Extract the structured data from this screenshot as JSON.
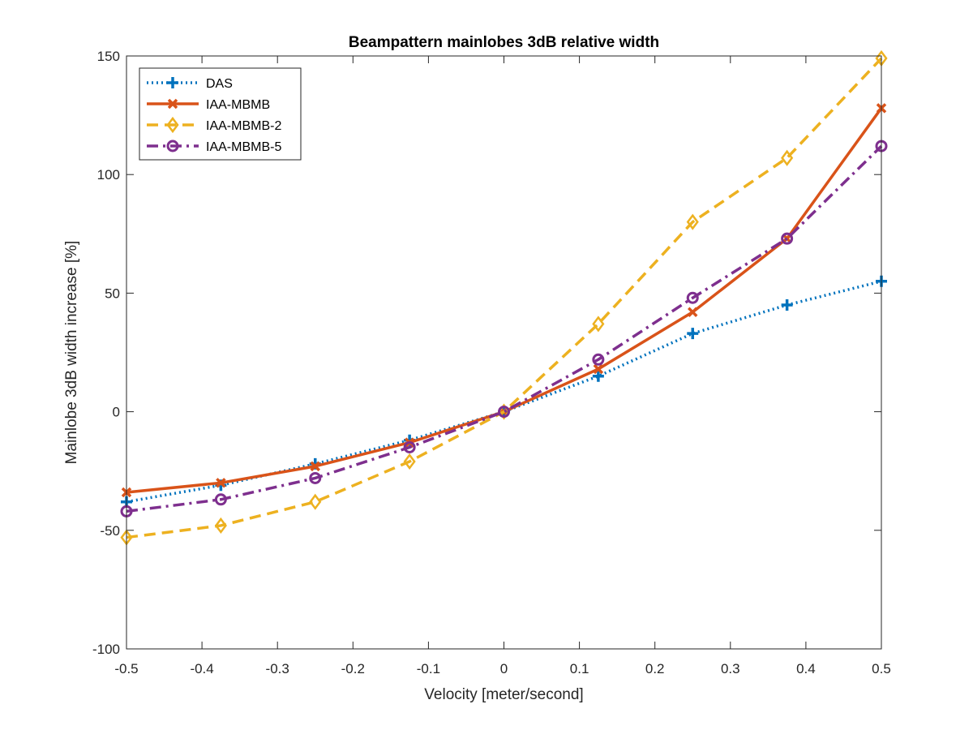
{
  "chart_data": {
    "type": "line",
    "title": "Beampattern mainlobes 3dB relative width",
    "xlabel": "Velocity [meter/second]",
    "ylabel": "Mainlobe 3dB width increase [%]",
    "xlim": [
      -0.5,
      0.5
    ],
    "ylim": [
      -100,
      150
    ],
    "xticks": [
      -0.5,
      -0.4,
      -0.3,
      -0.2,
      -0.1,
      0,
      0.1,
      0.2,
      0.3,
      0.4,
      0.5
    ],
    "yticks": [
      -100,
      -50,
      0,
      50,
      100,
      150
    ],
    "xtick_labels": [
      "-0.5",
      "-0.4",
      "-0.3",
      "-0.2",
      "-0.1",
      "0",
      "0.1",
      "0.2",
      "0.3",
      "0.4",
      "0.5"
    ],
    "ytick_labels": [
      "-100",
      "-50",
      "0",
      "50",
      "100",
      "150"
    ],
    "grid": false,
    "legend_position": "top-left",
    "x": [
      -0.5,
      -0.375,
      -0.25,
      -0.125,
      0,
      0.125,
      0.25,
      0.375,
      0.5
    ],
    "series": [
      {
        "name": "DAS",
        "color": "#0072BD",
        "line": "dotted",
        "marker": "plus",
        "values": [
          -38,
          -31,
          -22,
          -12,
          0,
          15,
          33,
          45,
          55
        ]
      },
      {
        "name": "IAA-MBMB",
        "color": "#D95319",
        "line": "solid",
        "marker": "x",
        "values": [
          -34,
          -30,
          -23,
          -13,
          0,
          18,
          42,
          73,
          128
        ]
      },
      {
        "name": "IAA-MBMB-2",
        "color": "#EDB120",
        "line": "dashed",
        "marker": "diamond",
        "values": [
          -53,
          -48,
          -38,
          -21,
          0,
          37,
          80,
          107,
          149
        ]
      },
      {
        "name": "IAA-MBMB-5",
        "color": "#7E2F8E",
        "line": "dashdot",
        "marker": "circle",
        "values": [
          -42,
          -37,
          -28,
          -15,
          0,
          22,
          48,
          73,
          112
        ]
      }
    ]
  }
}
